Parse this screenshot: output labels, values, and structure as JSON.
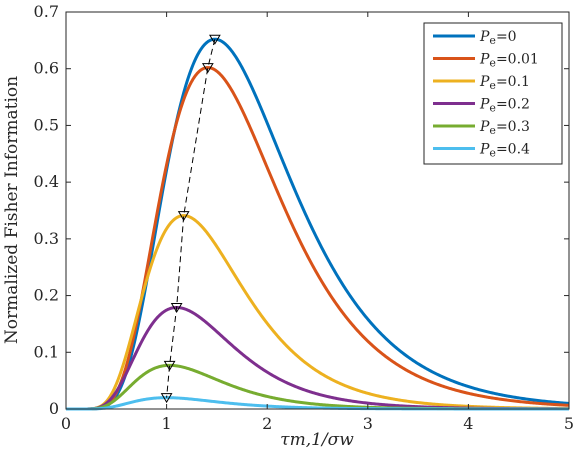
{
  "chart_data": {
    "type": "line",
    "title": "",
    "xlabel": "τm,1/σw",
    "ylabel": "Normalized Fisher Information",
    "xlim": [
      0,
      5
    ],
    "ylim": [
      0,
      0.7
    ],
    "xticks": [
      "0",
      "1",
      "2",
      "3",
      "4",
      "5"
    ],
    "yticks": [
      "0",
      "0.1",
      "0.2",
      "0.3",
      "0.4",
      "0.5",
      "0.6",
      "0.7"
    ],
    "grid": false,
    "legend_position": "top-right",
    "series": [
      {
        "name": "Pe=0",
        "legend_prefix": "P",
        "legend_subscript": "e",
        "legend_value": "=0",
        "color": "#0072BD",
        "peak_x": 1.48,
        "peak_y": 0.652
      },
      {
        "name": "Pe=0.01",
        "legend_prefix": "P",
        "legend_subscript": "e",
        "legend_value": "=0.01",
        "color": "#D95319",
        "peak_x": 1.41,
        "peak_y": 0.602
      },
      {
        "name": "Pe=0.1",
        "legend_prefix": "P",
        "legend_subscript": "e",
        "legend_value": "=0.1",
        "color": "#EDB120",
        "peak_x": 1.17,
        "peak_y": 0.341
      },
      {
        "name": "Pe=0.2",
        "legend_prefix": "P",
        "legend_subscript": "e",
        "legend_value": "=0.2",
        "color": "#7E2F8E",
        "peak_x": 1.1,
        "peak_y": 0.179
      },
      {
        "name": "Pe=0.3",
        "legend_prefix": "P",
        "legend_subscript": "e",
        "legend_value": "=0.3",
        "color": "#77AC30",
        "peak_x": 1.03,
        "peak_y": 0.077
      },
      {
        "name": "Pe=0.4",
        "legend_prefix": "P",
        "legend_subscript": "e",
        "legend_value": "=0.4",
        "color": "#4DBEEE",
        "peak_x": 1.0,
        "peak_y": 0.02
      }
    ],
    "peak_trace": {
      "style": "dashed",
      "color": "#000000",
      "marker": "down-triangle"
    }
  }
}
